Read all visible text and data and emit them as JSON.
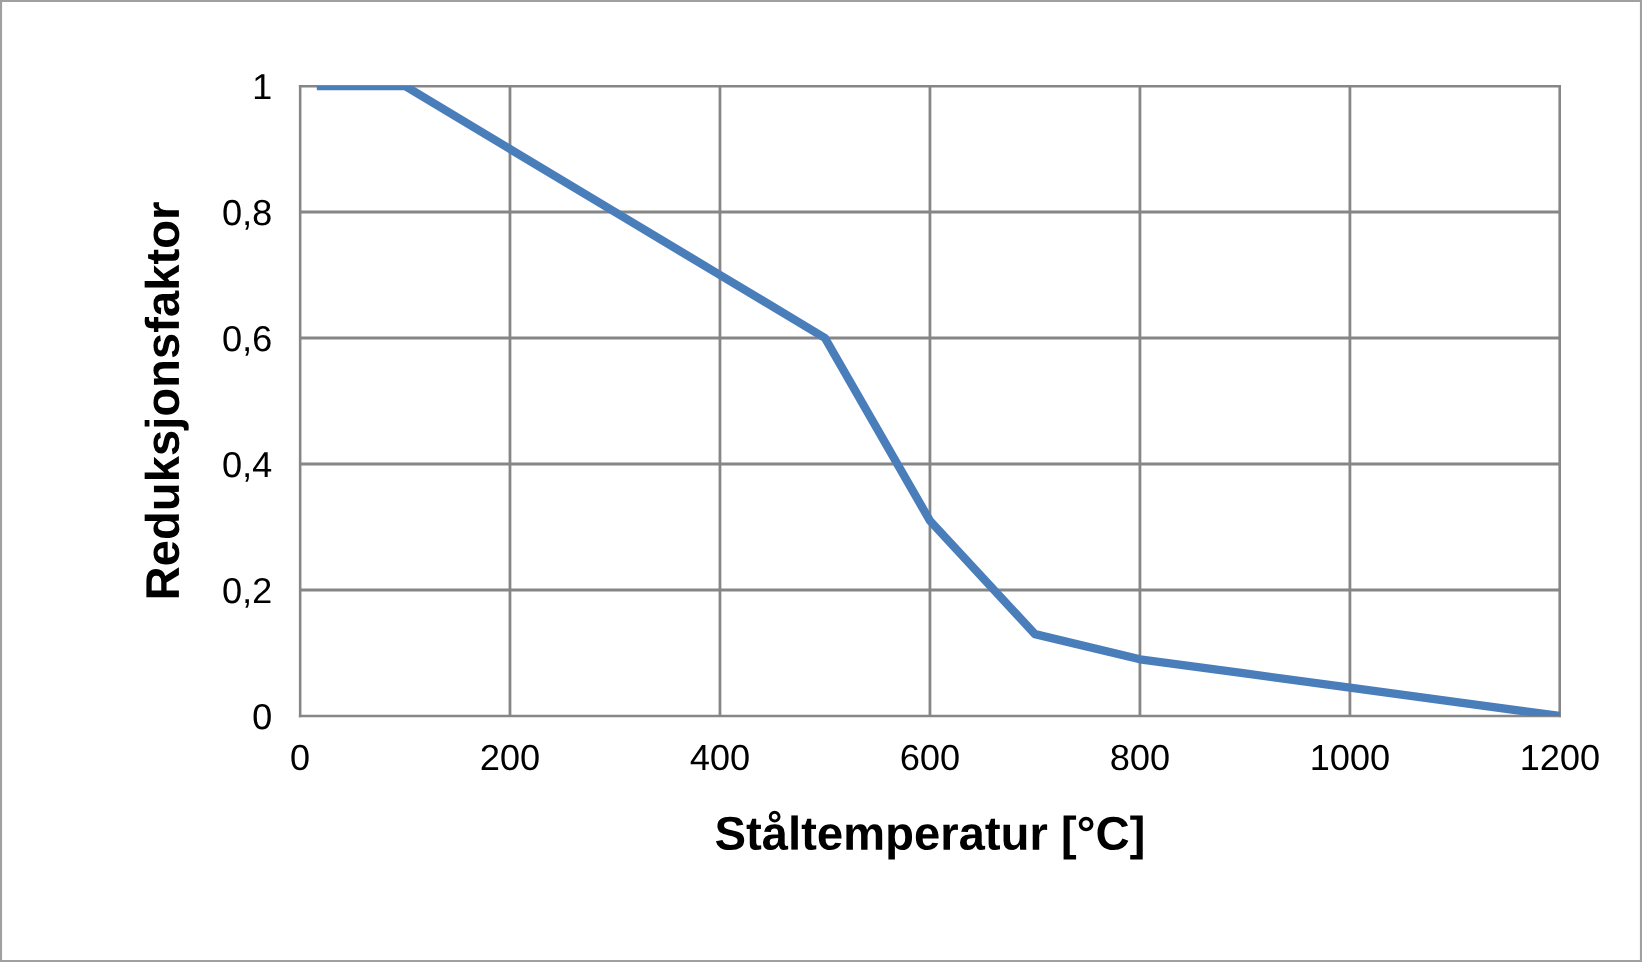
{
  "chart_data": {
    "type": "line",
    "xlabel": "Ståltemperatur [°C]",
    "ylabel": "Reduksjonsfaktor",
    "x": [
      20,
      100,
      200,
      300,
      400,
      500,
      600,
      700,
      800,
      900,
      1000,
      1100,
      1200
    ],
    "series": [
      {
        "color": "#4a7ebb",
        "values": [
          1,
          1,
          0.9,
          0.8,
          0.7,
          0.6,
          0.31,
          0.13,
          0.09,
          0.0675,
          0.045,
          0.0225,
          0
        ]
      }
    ],
    "xlim": [
      0,
      1200
    ],
    "xticks": [
      0,
      200,
      400,
      600,
      800,
      1000,
      1200
    ],
    "ylim": [
      0,
      1
    ],
    "yticks": [
      0,
      {
        "value": 0.2,
        "label": "0,2"
      },
      {
        "value": 0.4,
        "label": "0,4"
      },
      {
        "value": 0.6,
        "label": "0,6"
      },
      {
        "value": 0.8,
        "label": "0,8"
      },
      1
    ],
    "grid": true,
    "legend": false,
    "marker": "none",
    "line_style": "solid"
  }
}
